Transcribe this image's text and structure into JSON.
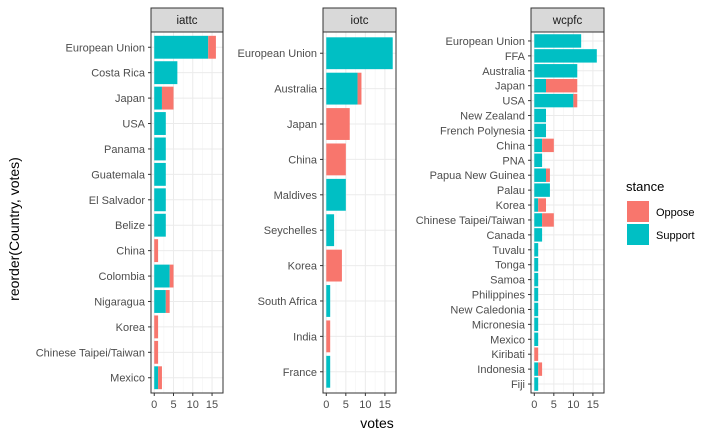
{
  "chart_data": {
    "type": "bar",
    "orientation": "horizontal",
    "stacked": true,
    "xlabel": "votes",
    "ylabel": "reorder(Country, votes)",
    "xlim": [
      0,
      17
    ],
    "xticks": [
      "0",
      "5",
      "10",
      "15"
    ],
    "grid": true,
    "legend": {
      "title": "stance",
      "placement": "right",
      "entries": [
        {
          "name": "Oppose",
          "color": "#F8766D"
        },
        {
          "name": "Support",
          "color": "#00BFC4"
        }
      ]
    },
    "facets": [
      {
        "label": "iattc",
        "rows": [
          {
            "country": "European Union",
            "support": 14,
            "oppose": 2
          },
          {
            "country": "Costa Rica",
            "support": 6,
            "oppose": 0
          },
          {
            "country": "Japan",
            "support": 2,
            "oppose": 3
          },
          {
            "country": "USA",
            "support": 3,
            "oppose": 0
          },
          {
            "country": "Panama",
            "support": 3,
            "oppose": 0
          },
          {
            "country": "Guatemala",
            "support": 3,
            "oppose": 0
          },
          {
            "country": "El Salvador",
            "support": 3,
            "oppose": 0
          },
          {
            "country": "Belize",
            "support": 3,
            "oppose": 0
          },
          {
            "country": "China",
            "support": 0,
            "oppose": 1
          },
          {
            "country": "Colombia",
            "support": 4,
            "oppose": 1
          },
          {
            "country": "Nigaragua",
            "support": 3,
            "oppose": 1
          },
          {
            "country": "Korea",
            "support": 0,
            "oppose": 1
          },
          {
            "country": "Chinese Taipei/Taiwan",
            "support": 0,
            "oppose": 1
          },
          {
            "country": "Mexico",
            "support": 1,
            "oppose": 1
          }
        ]
      },
      {
        "label": "iotc",
        "rows": [
          {
            "country": "European Union",
            "support": 17,
            "oppose": 0
          },
          {
            "country": "Australia",
            "support": 8,
            "oppose": 1
          },
          {
            "country": "Japan",
            "support": 0,
            "oppose": 6
          },
          {
            "country": "China",
            "support": 0,
            "oppose": 5
          },
          {
            "country": "Maldives",
            "support": 5,
            "oppose": 0
          },
          {
            "country": "Seychelles",
            "support": 2,
            "oppose": 0
          },
          {
            "country": "Korea",
            "support": 0,
            "oppose": 4
          },
          {
            "country": "South Africa",
            "support": 1,
            "oppose": 0
          },
          {
            "country": "India",
            "support": 0,
            "oppose": 1
          },
          {
            "country": "France",
            "support": 1,
            "oppose": 0
          }
        ]
      },
      {
        "label": "wcpfc",
        "rows": [
          {
            "country": "European Union",
            "support": 12,
            "oppose": 0
          },
          {
            "country": "FFA",
            "support": 16,
            "oppose": 0
          },
          {
            "country": "Australia",
            "support": 11,
            "oppose": 0
          },
          {
            "country": "Japan",
            "support": 3,
            "oppose": 8
          },
          {
            "country": "USA",
            "support": 10,
            "oppose": 1
          },
          {
            "country": "New Zealand",
            "support": 3,
            "oppose": 0
          },
          {
            "country": "French Polynesia",
            "support": 3,
            "oppose": 0
          },
          {
            "country": "China",
            "support": 2,
            "oppose": 3
          },
          {
            "country": "PNA",
            "support": 2,
            "oppose": 0
          },
          {
            "country": "Papua New Guinea",
            "support": 3,
            "oppose": 1
          },
          {
            "country": "Palau",
            "support": 4,
            "oppose": 0
          },
          {
            "country": "Korea",
            "support": 1,
            "oppose": 2
          },
          {
            "country": "Chinese Taipei/Taiwan",
            "support": 2,
            "oppose": 3
          },
          {
            "country": "Canada",
            "support": 2,
            "oppose": 0
          },
          {
            "country": "Tuvalu",
            "support": 1,
            "oppose": 0
          },
          {
            "country": "Tonga",
            "support": 1,
            "oppose": 0
          },
          {
            "country": "Samoa",
            "support": 1,
            "oppose": 0
          },
          {
            "country": "Philippines",
            "support": 1,
            "oppose": 0
          },
          {
            "country": "New Caledonia",
            "support": 1,
            "oppose": 0
          },
          {
            "country": "Micronesia",
            "support": 1,
            "oppose": 0
          },
          {
            "country": "Mexico",
            "support": 1,
            "oppose": 0
          },
          {
            "country": "Kiribati",
            "support": 0,
            "oppose": 1
          },
          {
            "country": "Indonesia",
            "support": 1,
            "oppose": 1
          },
          {
            "country": "Fiji",
            "support": 1,
            "oppose": 0
          }
        ]
      }
    ]
  }
}
